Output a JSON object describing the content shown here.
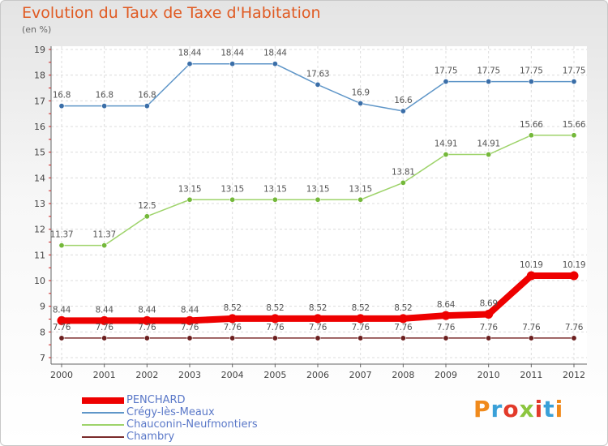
{
  "title": "Evolution du Taux de Taxe d'Habitation",
  "subtitle": "(en %)",
  "logo_text": "Proxiti",
  "chart_data": {
    "type": "line",
    "x": [
      "2000",
      "2001",
      "2002",
      "2003",
      "2004",
      "2005",
      "2006",
      "2007",
      "2008",
      "2009",
      "2010",
      "2011",
      "2012"
    ],
    "ylim": [
      7,
      19
    ],
    "yticks": [
      7,
      8,
      9,
      10,
      11,
      12,
      13,
      14,
      15,
      16,
      17,
      18,
      19
    ],
    "grid": true,
    "legend_position": "bottom-left",
    "series": [
      {
        "name": "PENCHARD",
        "color": "#ee0000",
        "thick": true,
        "values": [
          8.44,
          8.44,
          8.44,
          8.44,
          8.52,
          8.52,
          8.52,
          8.52,
          8.52,
          8.64,
          8.69,
          10.19,
          10.19
        ],
        "labels": [
          "8.44",
          "8.44",
          "8.44",
          "8.44",
          "8.52",
          "8.52",
          "8.52",
          "8.52",
          "8.52",
          "8.64",
          "8.69",
          "10.19",
          "10.19"
        ]
      },
      {
        "name": "Crégy-lès-Meaux",
        "color": "#5f96c8",
        "point_color": "#3a6ea8",
        "values": [
          16.8,
          16.8,
          16.8,
          18.44,
          18.44,
          18.44,
          17.63,
          16.9,
          16.6,
          17.75,
          17.75,
          17.75,
          17.75
        ],
        "labels": [
          "16.8",
          "16.8",
          "16.8",
          "18.44",
          "18.44",
          "18.44",
          "17.63",
          "16.9",
          "16.6",
          "17.75",
          "17.75",
          "17.75",
          "17.75"
        ]
      },
      {
        "name": "Chauconin-Neufmontiers",
        "color": "#9ed36a",
        "point_color": "#74b83a",
        "values": [
          11.37,
          11.37,
          12.5,
          13.15,
          13.15,
          13.15,
          13.15,
          13.15,
          13.81,
          14.91,
          14.91,
          15.66,
          15.66
        ],
        "labels": [
          "11.37",
          "11.37",
          "12.5",
          "13.15",
          "13.15",
          "13.15",
          "13.15",
          "13.15",
          "13.81",
          "14.91",
          "14.91",
          "15.66",
          "15.66"
        ]
      },
      {
        "name": "Chambry",
        "color": "#7a2a2a",
        "point_color": "#6b1f1f",
        "values": [
          7.76,
          7.76,
          7.76,
          7.76,
          7.76,
          7.76,
          7.76,
          7.76,
          7.76,
          7.76,
          7.76,
          7.76,
          7.76
        ],
        "labels": [
          "7.76",
          "7.76",
          "7.76",
          "7.76",
          "7.76",
          "7.76",
          "7.76",
          "7.76",
          "7.76",
          "7.76",
          "7.76",
          "7.76",
          "7.76"
        ]
      }
    ]
  }
}
